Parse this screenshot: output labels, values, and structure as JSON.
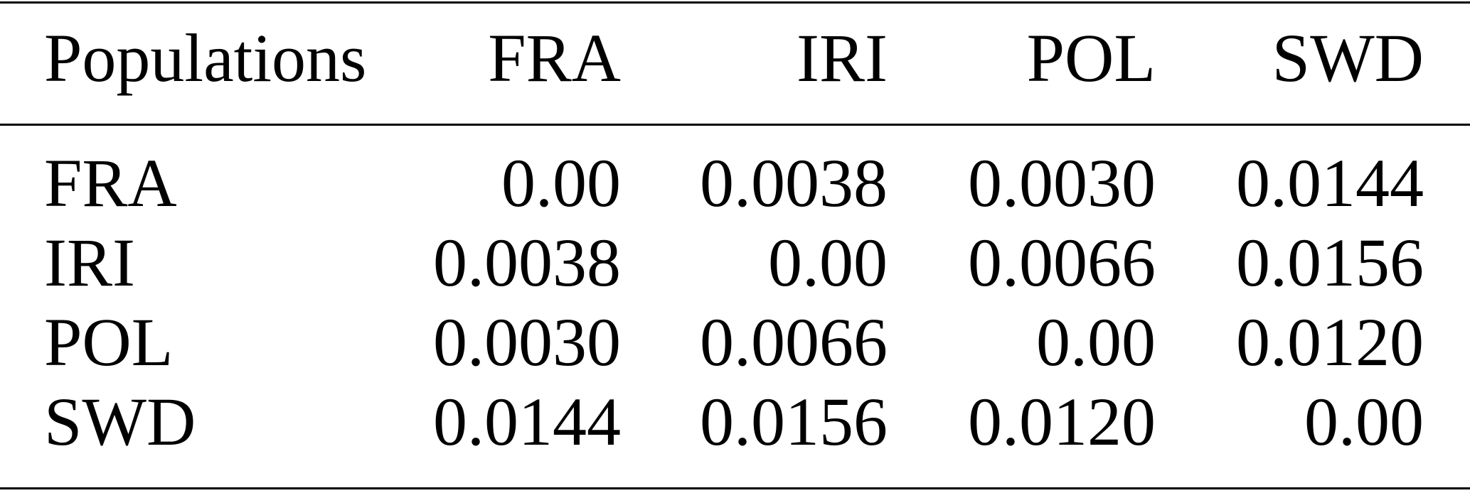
{
  "table": {
    "header": [
      "Populations",
      "FRA",
      "IRI",
      "POL",
      "SWD"
    ],
    "rows": [
      [
        "FRA",
        "0.00",
        "0.0038",
        "0.0030",
        "0.0144"
      ],
      [
        "IRI",
        "0.0038",
        "0.00",
        "0.0066",
        "0.0156"
      ],
      [
        "POL",
        "0.0030",
        "0.0066",
        "0.00",
        "0.0120"
      ],
      [
        "SWD",
        "0.0144",
        "0.0156",
        "0.0120",
        "0.00"
      ]
    ]
  }
}
